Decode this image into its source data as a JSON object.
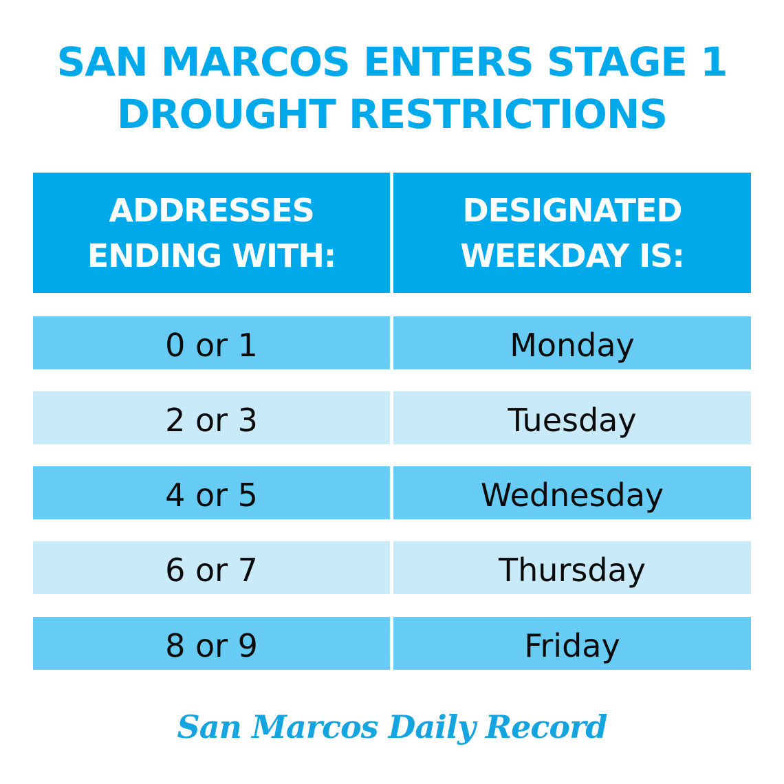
{
  "title": {
    "line1": "SAN MARCOS ENTERS STAGE 1",
    "line2": "DROUGHT RESTRICTIONS"
  },
  "table": {
    "headers": [
      {
        "line1": "ADDRESSES",
        "line2": "ENDING WITH:"
      },
      {
        "line1": "DESIGNATED",
        "line2": "WEEKDAY IS:"
      }
    ],
    "rows": [
      {
        "digits": "0 or 1",
        "day": "Monday"
      },
      {
        "digits": "2 or 3",
        "day": "Tuesday"
      },
      {
        "digits": "4 or 5",
        "day": "Wednesday"
      },
      {
        "digits": "6 or 7",
        "day": "Thursday"
      },
      {
        "digits": "8 or 9",
        "day": "Friday"
      }
    ]
  },
  "logo": {
    "text": "San Marcos Daily Record"
  },
  "colors": {
    "brand_blue": "#00a9ea",
    "row_dark": "#66ccf4",
    "row_light": "#c9eaf9",
    "text_dark": "#0a0a0a"
  }
}
